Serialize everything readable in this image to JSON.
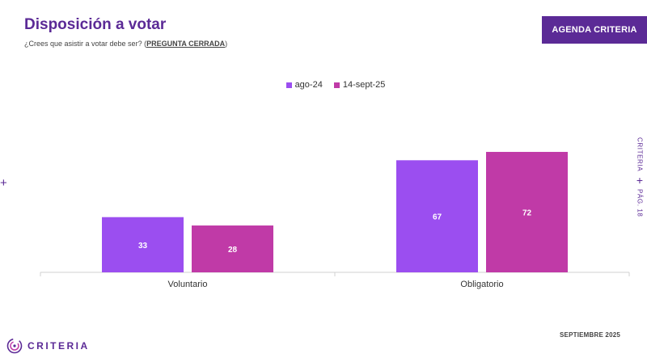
{
  "header": {
    "title": "Disposición a votar",
    "subtitle_question": "¿Crees que asistir a votar debe ser? (",
    "subtitle_tag": "PREGUNTA CERRADA",
    "subtitle_close": ")",
    "agenda_button": "AGENDA CRITERIA"
  },
  "side": {
    "brand": "CRITERIA",
    "page": "PÁG. 18"
  },
  "footer": {
    "logo_text": "CRITERIA",
    "date": "SEPTIEMBRE 2025"
  },
  "colors": {
    "brand": "#5b2a96",
    "series_1": "#9b4ef0",
    "series_2": "#c03aa7"
  },
  "chart_data": {
    "type": "bar",
    "categories": [
      "Voluntario",
      "Obligatorio"
    ],
    "series": [
      {
        "name": "ago-24",
        "values": [
          33,
          67
        ],
        "color": "#9b4ef0"
      },
      {
        "name": "14-sept-25",
        "values": [
          28,
          72
        ],
        "color": "#c03aa7"
      }
    ],
    "ylim": [
      0,
      100
    ],
    "data_labels": true,
    "legend_position": "top-center",
    "grid": false
  }
}
